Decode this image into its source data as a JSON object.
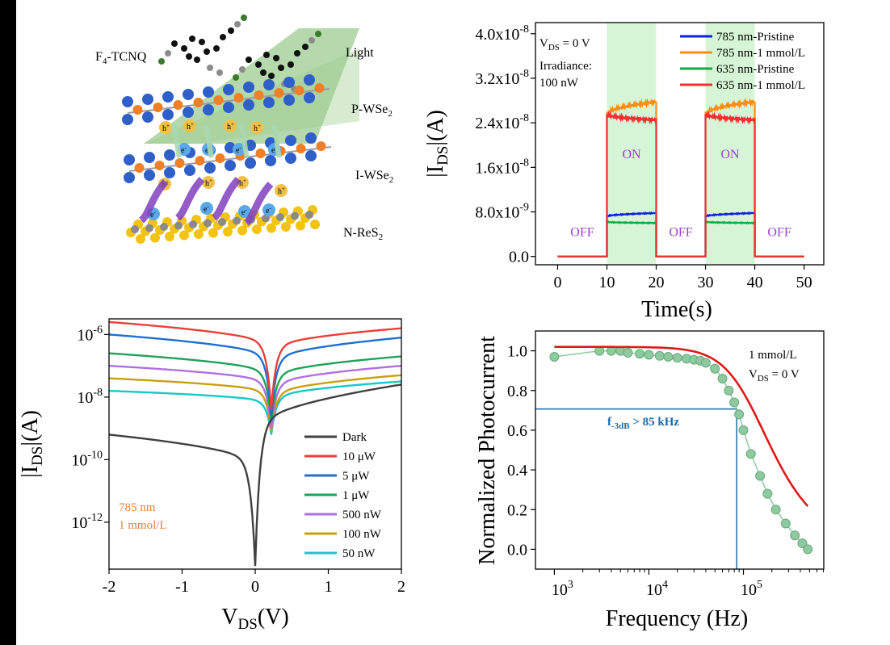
{
  "colors": {
    "pristine785": "#1020e0",
    "doped785": "#ff8c14",
    "pristine635": "#13a84a",
    "doped635": "#f03030",
    "on_shade": "#d6f5d6",
    "dark": "#404040",
    "p10uW": "#e8403a",
    "p5uW": "#1f6fd0",
    "p1uW": "#22a05a",
    "p500nW": "#b070e0",
    "p100nW": "#c8a010",
    "p50nW": "#18c8c8",
    "fit": "#e01818",
    "exp": "#8ec9a0",
    "marker": "#1a6aa8"
  },
  "schematic": {
    "labels": {
      "f4tcnq": "F",
      "f4tcnq_sub": "4",
      "f4tcnq_rest": "-TCNQ",
      "light": "Light",
      "pwse2": "P-WSe",
      "pwse2_sub": "2",
      "iwse2": "I-WSe",
      "iwse2_sub": "2",
      "nres2": "N-ReS",
      "nres2_sub": "2",
      "hole": "h",
      "hole_sup": "+",
      "electron": "e",
      "electron_sup": "-"
    }
  },
  "chart_data": [
    {
      "id": "time-response",
      "type": "line",
      "xlabel": "Time(s)",
      "ylabel": "|I",
      "ylabel_sub": "DS",
      "ylabel_rest": "|(A)",
      "xlim": [
        -4.5,
        54
      ],
      "ylim": [
        -1.5e-09,
        4.2e-08
      ],
      "x_ticks": [
        "0",
        "10",
        "20",
        "30",
        "40",
        "50"
      ],
      "x_tick_values": [
        0,
        10,
        20,
        30,
        40,
        50
      ],
      "y_ticks": [
        {
          "value": 0,
          "mant": "0.0",
          "exp": ""
        },
        {
          "value": 8e-09,
          "mant": "8.0x10",
          "exp": "-9"
        },
        {
          "value": 1.6e-08,
          "mant": "1.6x10",
          "exp": "-8"
        },
        {
          "value": 2.4e-08,
          "mant": "2.4x10",
          "exp": "-8"
        },
        {
          "value": 3.2e-08,
          "mant": "3.2x10",
          "exp": "-8"
        },
        {
          "value": 4e-08,
          "mant": "4.0x10",
          "exp": "-8"
        }
      ],
      "on_intervals": [
        [
          10,
          20
        ],
        [
          30,
          40
        ]
      ],
      "state_labels": [
        {
          "text": "OFF",
          "x": 5,
          "y": 4.5e-09
        },
        {
          "text": "ON",
          "x": 15,
          "y": 1.85e-08
        },
        {
          "text": "OFF",
          "x": 25,
          "y": 4.5e-09
        },
        {
          "text": "ON",
          "x": 35,
          "y": 1.85e-08
        },
        {
          "text": "OFF",
          "x": 45,
          "y": 4.5e-09
        }
      ],
      "annotation": {
        "vds": "V",
        "vds_sub": "DS",
        "vds_rest": " = 0 V",
        "irr1": "Irradiance:",
        "irr2": "100 nW"
      },
      "legend": [
        "785 nm-Pristine",
        "785 nm-1 mmol/L",
        "635 nm-Pristine",
        "635 nm-1 mmol/L"
      ],
      "series": [
        {
          "name": "785 nm-Pristine",
          "on_start": 7.2e-09,
          "on_end": 7.8e-09,
          "color_key": "pristine785"
        },
        {
          "name": "785 nm-1 mmol/L",
          "on_start": 2.55e-08,
          "on_end": 2.78e-08,
          "color_key": "doped785"
        },
        {
          "name": "635 nm-Pristine",
          "on_start": 6.2e-09,
          "on_end": 6e-09,
          "color_key": "pristine635"
        },
        {
          "name": "635 nm-1 mmol/L",
          "on_start": 2.55e-08,
          "on_end": 2.45e-08,
          "color_key": "doped635"
        }
      ]
    },
    {
      "id": "iv-curves",
      "type": "line",
      "log_y": true,
      "xlabel": "V",
      "xlabel_sub": "DS",
      "xlabel_rest": "(V)",
      "ylabel": "|I",
      "ylabel_sub": "DS",
      "ylabel_rest": "|(A)",
      "xlim": [
        -2,
        2
      ],
      "ylim_log10": [
        -13.5,
        -5.5
      ],
      "x_ticks": [
        "-2",
        "-1",
        "0",
        "1",
        "2"
      ],
      "x_tick_values": [
        -2,
        -1,
        0,
        1,
        2
      ],
      "y_ticks": [
        {
          "exp": "-12",
          "value": -12
        },
        {
          "exp": "-10",
          "value": -10
        },
        {
          "exp": "-8",
          "value": -8
        },
        {
          "exp": "-6",
          "value": -6
        }
      ],
      "y_base": "10",
      "annotation": [
        "785 nm",
        "1 mmol/L"
      ],
      "legend": [
        "Dark",
        "10 μW",
        "5 μW",
        "1 μW",
        "500 nW",
        "100 nW",
        "50 nW"
      ],
      "series": [
        {
          "name": "Dark",
          "color_key": "dark",
          "left": -9.2,
          "right": -7.6,
          "dip_x": 0.0,
          "dip": -13.4,
          "near_left": -10.2,
          "near_right": -9.1
        },
        {
          "name": "10 μW",
          "color_key": "p10uW",
          "left": -5.6,
          "right": -5.8,
          "dip_x": 0.22,
          "dip": -8.4,
          "near_left": -6.4,
          "near_right": -6.5
        },
        {
          "name": "5 μW",
          "color_key": "p5uW",
          "left": -6.0,
          "right": -6.1,
          "dip_x": 0.22,
          "dip": -8.6,
          "near_left": -6.8,
          "near_right": -6.9
        },
        {
          "name": "1 μW",
          "color_key": "p1uW",
          "left": -6.6,
          "right": -6.7,
          "dip_x": 0.22,
          "dip": -8.8,
          "near_left": -7.3,
          "near_right": -7.4
        },
        {
          "name": "500 nW",
          "color_key": "p500nW",
          "left": -7.0,
          "right": -7.0,
          "dip_x": 0.22,
          "dip": -9.0,
          "near_left": -7.6,
          "near_right": -7.7
        },
        {
          "name": "100 nW",
          "color_key": "p100nW",
          "left": -7.4,
          "right": -7.3,
          "dip_x": 0.22,
          "dip": -9.1,
          "near_left": -7.9,
          "near_right": -8.0
        },
        {
          "name": "50 nW",
          "color_key": "p50nW",
          "left": -7.8,
          "right": -7.5,
          "dip_x": 0.22,
          "dip": -9.2,
          "near_left": -8.2,
          "near_right": -8.1
        }
      ]
    },
    {
      "id": "frequency-response",
      "type": "scatter",
      "log_x": true,
      "xlabel": "Frequency (Hz)",
      "ylabel": "Normalized Photocurrent",
      "xlim_log10": [
        2.8,
        5.85
      ],
      "ylim": [
        -0.1,
        1.1
      ],
      "x_ticks": [
        {
          "exp": "3",
          "value": 3
        },
        {
          "exp": "4",
          "value": 4
        },
        {
          "exp": "5",
          "value": 5
        }
      ],
      "x_base": "10",
      "y_ticks": [
        "0.0",
        "0.2",
        "0.4",
        "0.6",
        "0.8",
        "1.0"
      ],
      "y_tick_values": [
        0,
        0.2,
        0.4,
        0.6,
        0.8,
        1.0
      ],
      "annotation": {
        "conc": "1 mmol/L",
        "vds": "V",
        "vds_sub": "DS",
        "vds_rest": " = 0 V"
      },
      "f3db_label": {
        "f": "f",
        "sub": "-3dB",
        "rest": " > 85 kHz"
      },
      "f3db_hz": 85000,
      "f3db_level": 0.707,
      "points": [
        [
          1000,
          0.97
        ],
        [
          3000,
          1.0
        ],
        [
          4000,
          1.0
        ],
        [
          5000,
          1.0
        ],
        [
          6000,
          0.99
        ],
        [
          8000,
          0.985
        ],
        [
          10000,
          0.98
        ],
        [
          13000,
          0.975
        ],
        [
          16000,
          0.97
        ],
        [
          20000,
          0.965
        ],
        [
          25000,
          0.96
        ],
        [
          30000,
          0.955
        ],
        [
          35000,
          0.95
        ],
        [
          40000,
          0.94
        ],
        [
          50000,
          0.91
        ],
        [
          60000,
          0.86
        ],
        [
          70000,
          0.8
        ],
        [
          80000,
          0.74
        ],
        [
          90000,
          0.68
        ],
        [
          100000,
          0.6
        ],
        [
          120000,
          0.48
        ],
        [
          150000,
          0.37
        ],
        [
          180000,
          0.28
        ],
        [
          220000,
          0.2
        ],
        [
          280000,
          0.13
        ],
        [
          350000,
          0.07
        ],
        [
          420000,
          0.03
        ],
        [
          480000,
          0.0
        ]
      ],
      "fit_fc": 120000
    }
  ]
}
